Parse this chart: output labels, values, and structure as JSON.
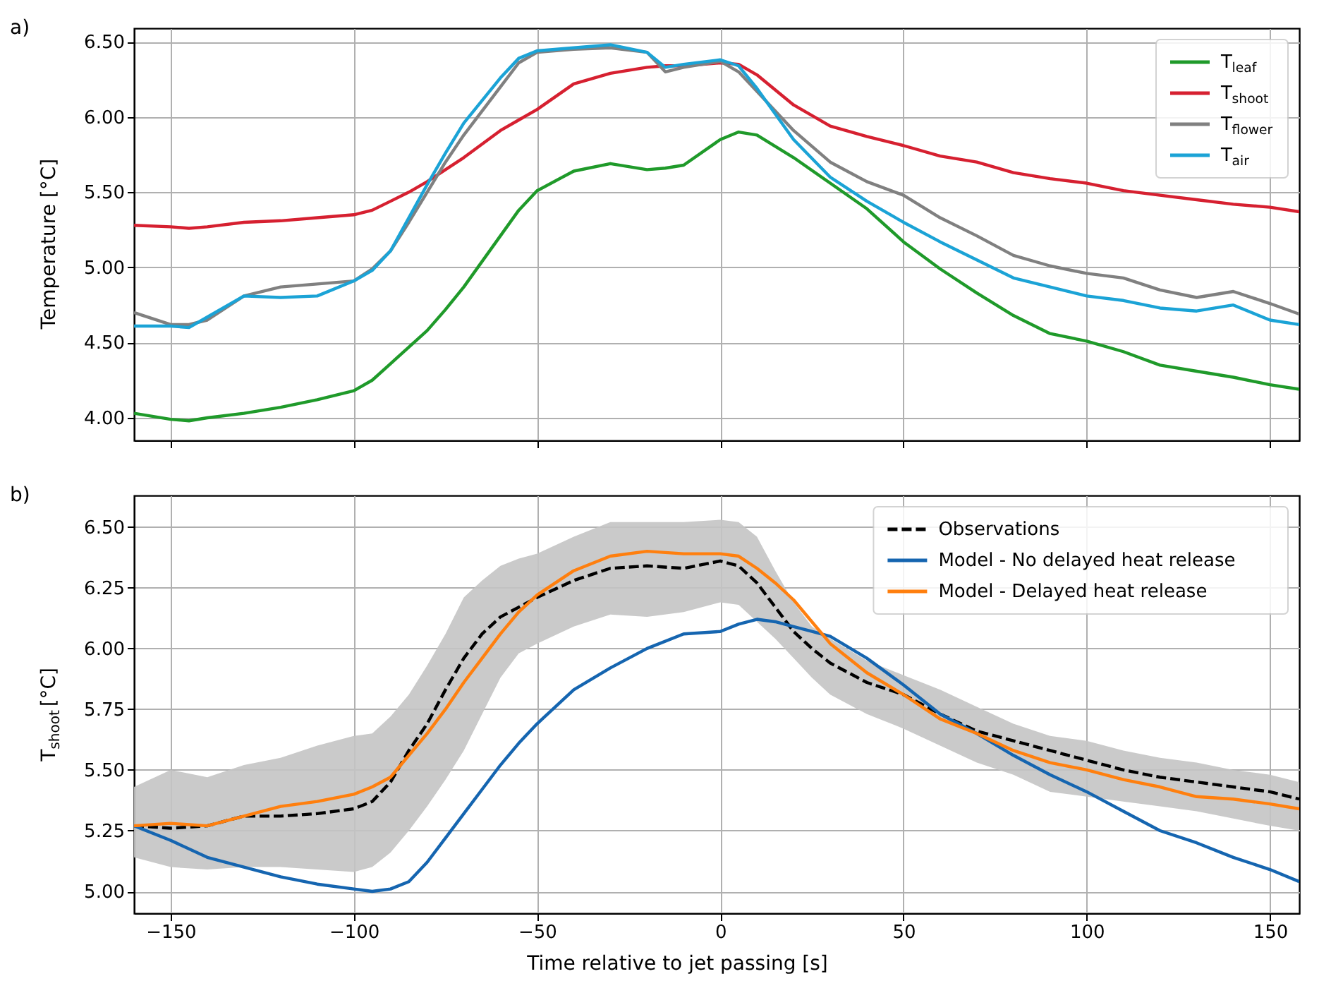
{
  "chart_data": [
    {
      "type": "line",
      "annotations": [
        "a)"
      ],
      "ylabel": "Temperature [°C]",
      "x": [
        -160,
        -150,
        -145,
        -140,
        -130,
        -120,
        -110,
        -100,
        -95,
        -90,
        -85,
        -80,
        -75,
        -70,
        -60,
        -55,
        -50,
        -40,
        -30,
        -20,
        -15,
        -10,
        0,
        5,
        10,
        20,
        30,
        40,
        50,
        60,
        70,
        80,
        90,
        100,
        110,
        120,
        130,
        140,
        150,
        158
      ],
      "series": [
        {
          "name": "T$_{leaf}$",
          "color": "#1f9a2a",
          "values": [
            4.03,
            3.99,
            3.98,
            4.0,
            4.03,
            4.07,
            4.12,
            4.18,
            4.25,
            4.36,
            4.47,
            4.58,
            4.72,
            4.87,
            5.21,
            5.38,
            5.51,
            5.64,
            5.69,
            5.65,
            5.66,
            5.68,
            5.85,
            5.9,
            5.88,
            5.73,
            5.56,
            5.39,
            5.17,
            4.99,
            4.83,
            4.68,
            4.56,
            4.51,
            4.44,
            4.35,
            4.31,
            4.27,
            4.22,
            4.19
          ]
        },
        {
          "name": "T$_{shoot}$",
          "color": "#d62030",
          "values": [
            5.28,
            5.27,
            5.26,
            5.27,
            5.3,
            5.31,
            5.33,
            5.35,
            5.38,
            5.44,
            5.5,
            5.57,
            5.65,
            5.73,
            5.91,
            5.98,
            6.05,
            6.22,
            6.29,
            6.33,
            6.34,
            6.34,
            6.36,
            6.35,
            6.28,
            6.08,
            5.94,
            5.87,
            5.81,
            5.74,
            5.7,
            5.63,
            5.59,
            5.56,
            5.51,
            5.48,
            5.45,
            5.42,
            5.4,
            5.37
          ]
        },
        {
          "name": "T$_{flower}$",
          "color": "#808080",
          "values": [
            4.7,
            4.62,
            4.62,
            4.65,
            4.81,
            4.87,
            4.89,
            4.91,
            4.99,
            5.11,
            5.3,
            5.5,
            5.7,
            5.88,
            6.2,
            6.36,
            6.43,
            6.45,
            6.46,
            6.43,
            6.3,
            6.33,
            6.37,
            6.3,
            6.17,
            5.91,
            5.7,
            5.57,
            5.48,
            5.33,
            5.21,
            5.08,
            5.01,
            4.96,
            4.93,
            4.85,
            4.8,
            4.84,
            4.76,
            4.69
          ]
        },
        {
          "name": "T$_{air}$",
          "color": "#1ba3d6",
          "values": [
            4.61,
            4.61,
            4.6,
            4.67,
            4.81,
            4.8,
            4.81,
            4.91,
            4.98,
            5.11,
            5.33,
            5.55,
            5.76,
            5.96,
            6.26,
            6.39,
            6.44,
            6.46,
            6.48,
            6.43,
            6.33,
            6.35,
            6.38,
            6.34,
            6.19,
            5.85,
            5.6,
            5.44,
            5.3,
            5.17,
            5.05,
            4.93,
            4.87,
            4.81,
            4.78,
            4.73,
            4.71,
            4.75,
            4.65,
            4.62
          ]
        }
      ],
      "xlim": [
        -160,
        158
      ],
      "ylim": [
        3.85,
        6.59
      ],
      "xticks": [
        -150,
        -100,
        -50,
        0,
        50,
        100,
        150
      ],
      "yticks": [
        {
          "value": 4,
          "label": "4.00"
        },
        {
          "value": 4.5,
          "label": "4.50"
        },
        {
          "value": 5,
          "label": "5.00"
        },
        {
          "value": 5.5,
          "label": "5.50"
        },
        {
          "value": 6,
          "label": "6.00"
        },
        {
          "value": 6.5,
          "label": "6.50"
        }
      ],
      "tick_labels": "y",
      "grid": true,
      "legend": "top right",
      "marker": "none"
    },
    {
      "type": "line",
      "annotations": [
        "b)"
      ],
      "xlabel": "Time relative to jet passing [s]",
      "ylabel": "T$_{shoot}$ [°C]",
      "x": [
        -160,
        -150,
        -140,
        -130,
        -120,
        -110,
        -100,
        -95,
        -90,
        -85,
        -80,
        -75,
        -70,
        -65,
        -60,
        -55,
        -50,
        -40,
        -30,
        -20,
        -10,
        0,
        5,
        10,
        15,
        20,
        25,
        30,
        40,
        50,
        60,
        70,
        80,
        90,
        100,
        110,
        120,
        130,
        140,
        150,
        158
      ],
      "series": [
        {
          "name": "Observations",
          "color": "#000000",
          "line_style": "dashed",
          "values": [
            5.27,
            5.26,
            5.27,
            5.31,
            5.31,
            5.32,
            5.34,
            5.37,
            5.45,
            5.58,
            5.69,
            5.83,
            5.96,
            6.06,
            6.13,
            6.17,
            6.21,
            6.28,
            6.33,
            6.34,
            6.33,
            6.36,
            6.34,
            6.27,
            6.17,
            6.07,
            6.0,
            5.94,
            5.86,
            5.81,
            5.73,
            5.66,
            5.62,
            5.58,
            5.54,
            5.5,
            5.47,
            5.45,
            5.43,
            5.41,
            5.38
          ],
          "lower": [
            5.14,
            5.1,
            5.09,
            5.1,
            5.1,
            5.09,
            5.08,
            5.1,
            5.16,
            5.25,
            5.35,
            5.46,
            5.58,
            5.73,
            5.88,
            5.98,
            6.02,
            6.09,
            6.14,
            6.13,
            6.15,
            6.19,
            6.18,
            6.11,
            6.04,
            5.96,
            5.88,
            5.81,
            5.73,
            5.67,
            5.6,
            5.53,
            5.48,
            5.41,
            5.39,
            5.37,
            5.35,
            5.33,
            5.3,
            5.27,
            5.25
          ],
          "upper": [
            5.43,
            5.5,
            5.47,
            5.52,
            5.55,
            5.6,
            5.64,
            5.65,
            5.72,
            5.81,
            5.93,
            6.06,
            6.21,
            6.28,
            6.34,
            6.37,
            6.39,
            6.46,
            6.52,
            6.52,
            6.52,
            6.53,
            6.52,
            6.46,
            6.32,
            6.19,
            6.09,
            6.04,
            5.95,
            5.89,
            5.83,
            5.76,
            5.69,
            5.64,
            5.62,
            5.58,
            5.55,
            5.53,
            5.5,
            5.48,
            5.45
          ]
        },
        {
          "name": "Model - No delayed heat release",
          "color": "#1565b0",
          "line_style": "solid",
          "values": [
            5.27,
            5.21,
            5.14,
            5.1,
            5.06,
            5.03,
            5.01,
            5.0,
            5.01,
            5.04,
            5.12,
            5.22,
            5.32,
            5.42,
            5.52,
            5.61,
            5.69,
            5.83,
            5.92,
            6.0,
            6.06,
            6.07,
            6.1,
            6.12,
            6.11,
            6.09,
            6.07,
            6.05,
            5.96,
            5.85,
            5.73,
            5.65,
            5.56,
            5.48,
            5.41,
            5.33,
            5.25,
            5.2,
            5.14,
            5.09,
            5.04
          ]
        },
        {
          "name": "Model - Delayed heat release",
          "color": "#ff7f0e",
          "line_style": "solid",
          "values": [
            5.27,
            5.28,
            5.27,
            5.31,
            5.35,
            5.37,
            5.4,
            5.43,
            5.47,
            5.56,
            5.65,
            5.75,
            5.86,
            5.96,
            6.06,
            6.15,
            6.22,
            6.32,
            6.38,
            6.4,
            6.39,
            6.39,
            6.38,
            6.33,
            6.27,
            6.2,
            6.11,
            6.02,
            5.9,
            5.81,
            5.71,
            5.65,
            5.58,
            5.53,
            5.5,
            5.46,
            5.43,
            5.39,
            5.38,
            5.36,
            5.34
          ]
        }
      ],
      "xlim": [
        -160,
        158
      ],
      "ylim": [
        4.91,
        6.63
      ],
      "xticks": [
        {
          "value": -150,
          "label": "−150"
        },
        {
          "value": -100,
          "label": "−100"
        },
        {
          "value": -50,
          "label": "−50"
        },
        0,
        50,
        100,
        150
      ],
      "yticks": [
        {
          "value": 5,
          "label": "5.00"
        },
        {
          "value": 5.25,
          "label": "5.25"
        },
        {
          "value": 5.5,
          "label": "5.50"
        },
        {
          "value": 5.75,
          "label": "5.75"
        },
        {
          "value": 6,
          "label": "6.00"
        },
        {
          "value": 6.25,
          "label": "6.25"
        },
        {
          "value": 6.5,
          "label": "6.50"
        }
      ],
      "grid": true,
      "legend": "top right",
      "marker": "none"
    }
  ]
}
